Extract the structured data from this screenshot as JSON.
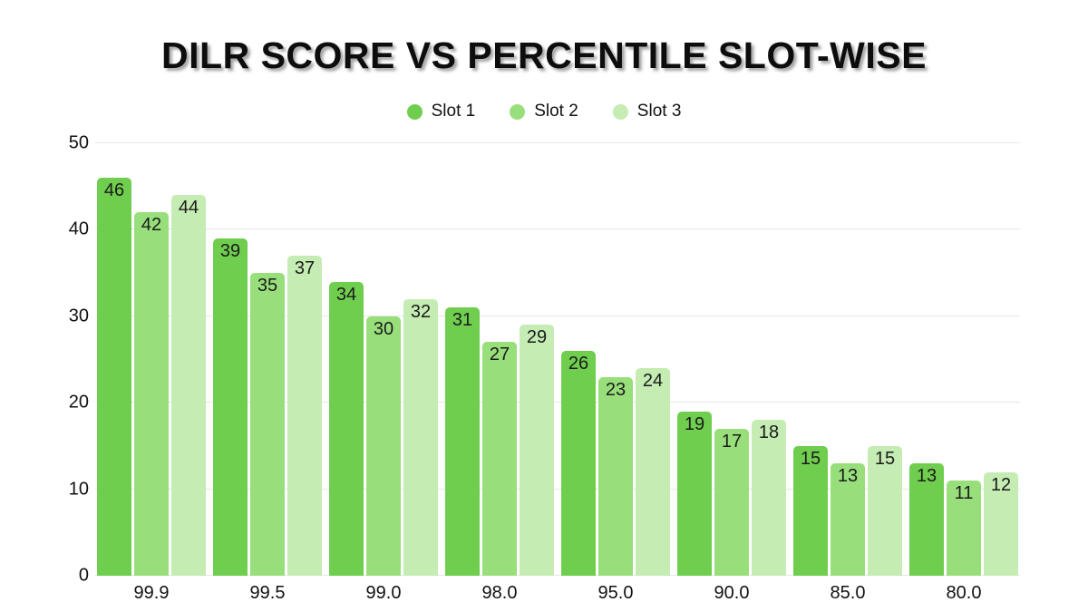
{
  "title": "DILR SCORE VS PERCENTILE SLOT-WISE",
  "colors": {
    "slot1": "#6FCE4E",
    "slot2": "#98DF7B",
    "slot3": "#C5ECB2",
    "gridline": "#e7e7e7",
    "text": "#111111",
    "background": "#ffffff"
  },
  "chart_data": {
    "type": "bar",
    "title": "DILR SCORE VS PERCENTILE SLOT-WISE",
    "categories": [
      "99.9",
      "99.5",
      "99.0",
      "98.0",
      "95.0",
      "90.0",
      "85.0",
      "80.0"
    ],
    "series": [
      {
        "name": "Slot 1",
        "color": "#6FCE4E",
        "values": [
          46,
          39,
          34,
          31,
          26,
          19,
          15,
          13
        ]
      },
      {
        "name": "Slot 2",
        "color": "#98DF7B",
        "values": [
          42,
          35,
          30,
          27,
          23,
          17,
          13,
          11
        ]
      },
      {
        "name": "Slot 3",
        "color": "#C5ECB2",
        "values": [
          44,
          37,
          32,
          29,
          24,
          18,
          15,
          12
        ]
      }
    ],
    "xlabel": "",
    "ylabel": "",
    "ylim": [
      0,
      50
    ],
    "yticks": [
      0,
      10,
      20,
      30,
      40,
      50
    ],
    "grid": true,
    "legend_position": "top",
    "value_labels": "inside-top"
  }
}
